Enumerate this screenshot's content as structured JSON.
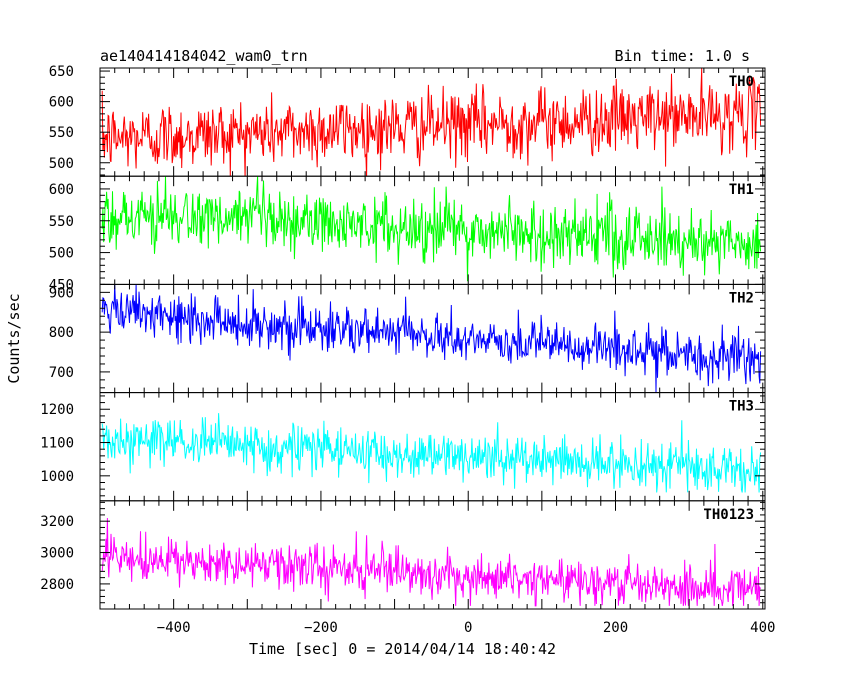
{
  "header": {
    "left_title": "ae140414184042_wam0_trn",
    "right_title": "Bin time: 1.0 s"
  },
  "chart_data": {
    "type": "line",
    "xlabel": "Time [sec] 0 = 2014/04/14 18:40:42",
    "ylabel": "Counts/sec",
    "xlim": [
      -500,
      403
    ],
    "x_ticks": [
      -400,
      -200,
      0,
      200,
      400
    ],
    "x_tick_labels": [
      "−400",
      "−200",
      "0",
      "200",
      "400"
    ],
    "bin_time_s": 1.0,
    "x_range_data": [
      -497,
      397
    ],
    "panels": [
      {
        "name": "TH0",
        "color": "#ff0000",
        "ylim": [
          478,
          655
        ],
        "y_ticks": [
          500,
          550,
          600,
          650
        ],
        "trend_start": 540,
        "trend_end": 580,
        "noise_sd": 28,
        "min_value": 473,
        "max_value": 655
      },
      {
        "name": "TH1",
        "color": "#00ff00",
        "ylim": [
          450,
          620
        ],
        "y_ticks": [
          450,
          500,
          550,
          600
        ],
        "trend_start": 560,
        "trend_end": 515,
        "noise_sd": 25,
        "min_value": 455,
        "max_value": 620
      },
      {
        "name": "TH2",
        "color": "#0000ff",
        "ylim": [
          648,
          920
        ],
        "y_ticks": [
          700,
          800,
          900
        ],
        "trend_start": 850,
        "trend_end": 728,
        "noise_sd": 30,
        "min_value": 648,
        "max_value": 920
      },
      {
        "name": "TH3",
        "color": "#00ffff",
        "ylim": [
          925,
          1250
        ],
        "y_ticks": [
          1000,
          1100,
          1200
        ],
        "trend_start": 1110,
        "trend_end": 1015,
        "noise_sd": 36,
        "min_value": 950,
        "max_value": 1250
      },
      {
        "name": "TH0123",
        "color": "#ff00ff",
        "ylim": [
          2640,
          3330
        ],
        "y_ticks": [
          2800,
          3000,
          3200
        ],
        "trend_start": 2960,
        "trend_end": 2770,
        "noise_sd": 72,
        "min_value": 2660,
        "max_value": 3220
      }
    ]
  }
}
